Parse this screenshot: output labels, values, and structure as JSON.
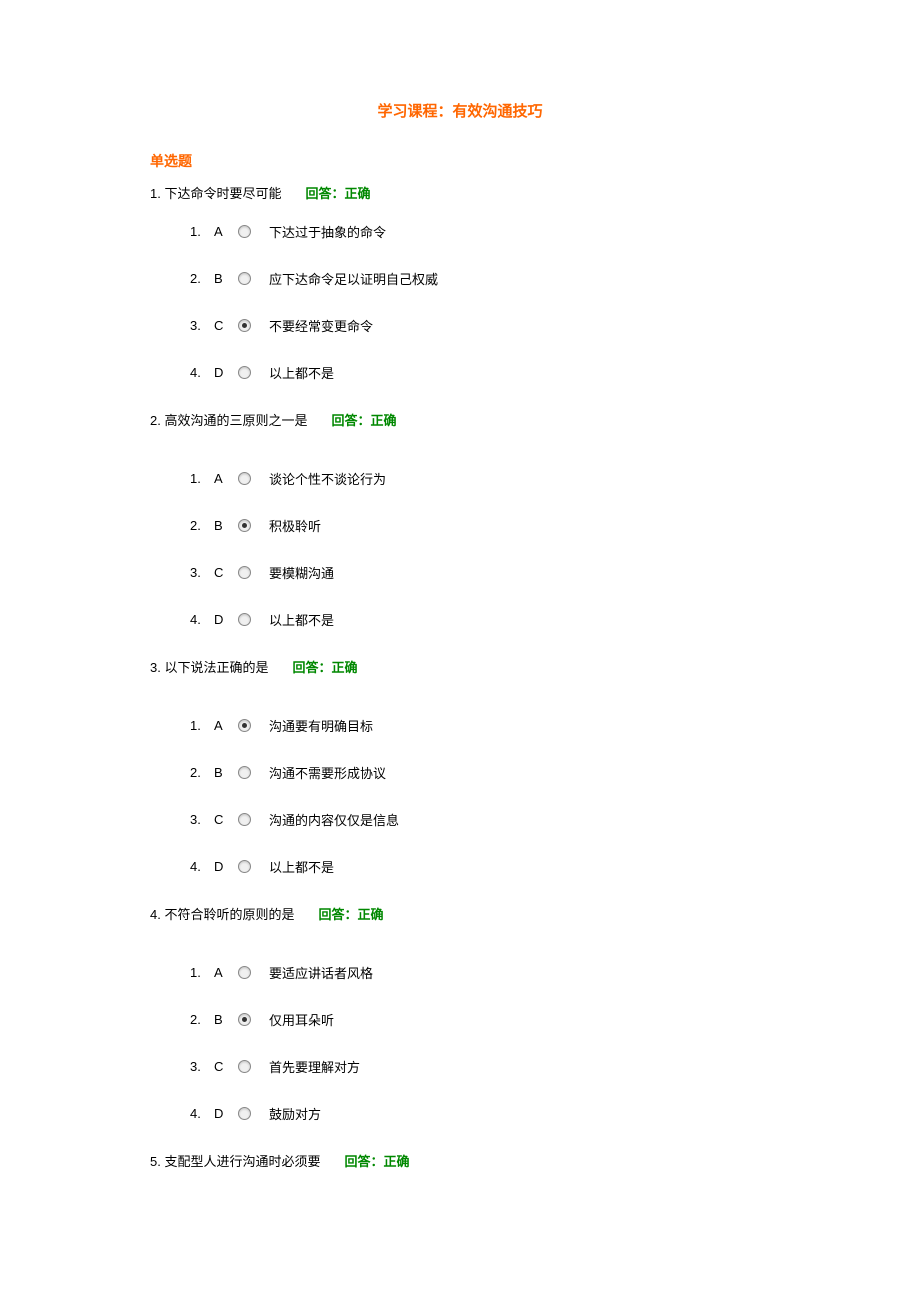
{
  "course_title": "学习课程：有效沟通技巧",
  "section_header": "单选题",
  "feedback_label": "回答：正确",
  "colors": {
    "title": "#ff6600",
    "section": "#ff6600",
    "feedback": "#008800",
    "text": "#000000",
    "background": "#ffffff"
  },
  "questions": [
    {
      "num": "1.",
      "text": "下达命令时要尽可能",
      "selected": 2,
      "options": [
        {
          "n": "1.",
          "l": "A",
          "t": "下达过于抽象的命令"
        },
        {
          "n": "2.",
          "l": "B",
          "t": "应下达命令足以证明自己权威"
        },
        {
          "n": "3.",
          "l": "C",
          "t": "不要经常变更命令"
        },
        {
          "n": "4.",
          "l": "D",
          "t": "以上都不是"
        }
      ]
    },
    {
      "num": "2.",
      "text": "高效沟通的三原则之一是",
      "selected": 1,
      "options": [
        {
          "n": "1.",
          "l": "A",
          "t": "谈论个性不谈论行为"
        },
        {
          "n": "2.",
          "l": "B",
          "t": "积极聆听"
        },
        {
          "n": "3.",
          "l": "C",
          "t": "要模糊沟通"
        },
        {
          "n": "4.",
          "l": "D",
          "t": "以上都不是"
        }
      ]
    },
    {
      "num": "3.",
      "text": "以下说法正确的是",
      "selected": 0,
      "options": [
        {
          "n": "1.",
          "l": "A",
          "t": "沟通要有明确目标"
        },
        {
          "n": "2.",
          "l": "B",
          "t": "沟通不需要形成协议"
        },
        {
          "n": "3.",
          "l": "C",
          "t": "沟通的内容仅仅是信息"
        },
        {
          "n": "4.",
          "l": "D",
          "t": "以上都不是"
        }
      ]
    },
    {
      "num": "4.",
      "text": "不符合聆听的原则的是",
      "selected": 1,
      "options": [
        {
          "n": "1.",
          "l": "A",
          "t": "要适应讲话者风格"
        },
        {
          "n": "2.",
          "l": "B",
          "t": "仅用耳朵听"
        },
        {
          "n": "3.",
          "l": "C",
          "t": "首先要理解对方"
        },
        {
          "n": "4.",
          "l": "D",
          "t": "鼓励对方"
        }
      ]
    },
    {
      "num": "5.",
      "text": "支配型人进行沟通时必须要",
      "selected": -1,
      "options": []
    }
  ]
}
